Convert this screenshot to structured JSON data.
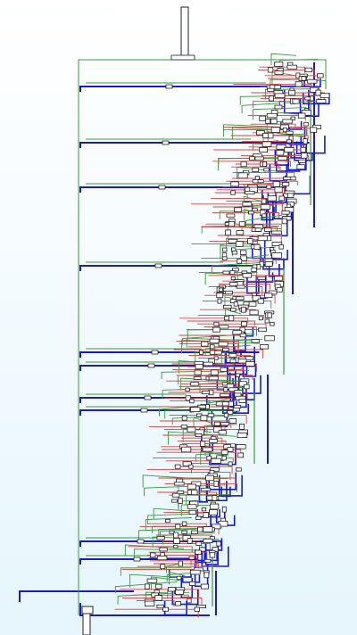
{
  "diagram": {
    "kind": "control-flow-graph",
    "orientation": "top-down",
    "edge_colors": {
      "backward": "#1a1acc",
      "fallthrough": "#3a9a3a",
      "jump": "#e04040",
      "block_border": "#222222",
      "block_fill": "#ffffff"
    },
    "entry_block": "entry-node",
    "exit_block": "exit-node"
  }
}
